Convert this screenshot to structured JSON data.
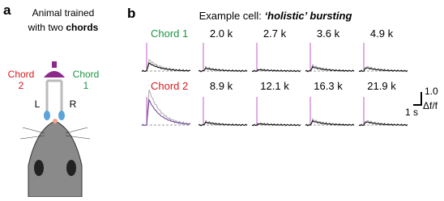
{
  "panel_a": {
    "label": "a",
    "caption": [
      "Animal trained",
      "with two ",
      "chords"
    ],
    "left_chord": [
      "Chord",
      "2"
    ],
    "right_chord": [
      "Chord",
      "1"
    ],
    "ports": [
      "L",
      "R"
    ]
  },
  "panel_b": {
    "label": "b",
    "title": [
      "Example cell: ",
      "‘holistic’ bursting"
    ],
    "rows": [
      {
        "name": "Chord 1",
        "tones": [
          "2.0 k",
          "2.7 k",
          "3.6 k",
          "4.9 k"
        ]
      },
      {
        "name": "Chord 2",
        "tones": [
          "8.9 k",
          "12.1 k",
          "16.3 k",
          "21.9 k"
        ]
      }
    ],
    "scale": {
      "y": "1.0",
      "x": "1 s",
      "y_unit": "Δf/f"
    }
  }
}
